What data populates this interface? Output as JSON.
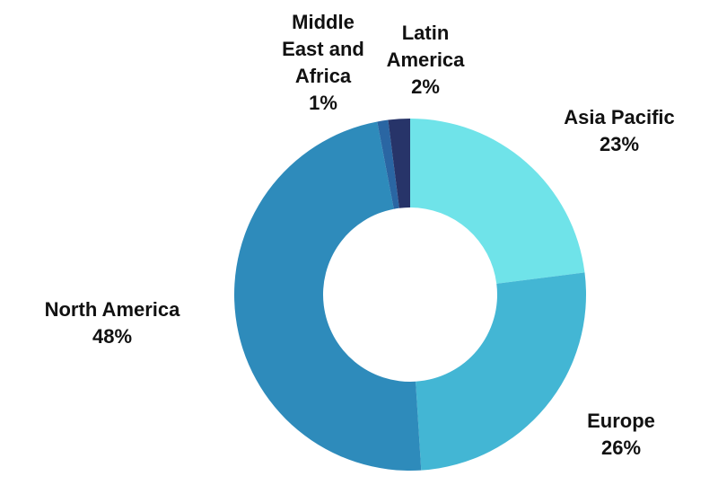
{
  "chart_data": {
    "type": "pie",
    "variant": "donut",
    "title": "",
    "slices": [
      {
        "label_lines": [
          "Asia Pacific"
        ],
        "percent_label": "23%",
        "value": 23,
        "color": "#6fe3e9"
      },
      {
        "label_lines": [
          "Europe"
        ],
        "percent_label": "26%",
        "value": 26,
        "color": "#43b6d4"
      },
      {
        "label_lines": [
          "North America"
        ],
        "percent_label": "48%",
        "value": 48,
        "color": "#2e8bbb"
      },
      {
        "label_lines": [
          "Middle",
          "East and",
          "Africa"
        ],
        "percent_label": "1%",
        "value": 1,
        "color": "#2a66a3"
      },
      {
        "label_lines": [
          "Latin",
          "America"
        ],
        "percent_label": "2%",
        "value": 2,
        "color": "#273469"
      }
    ],
    "legend": "none"
  }
}
